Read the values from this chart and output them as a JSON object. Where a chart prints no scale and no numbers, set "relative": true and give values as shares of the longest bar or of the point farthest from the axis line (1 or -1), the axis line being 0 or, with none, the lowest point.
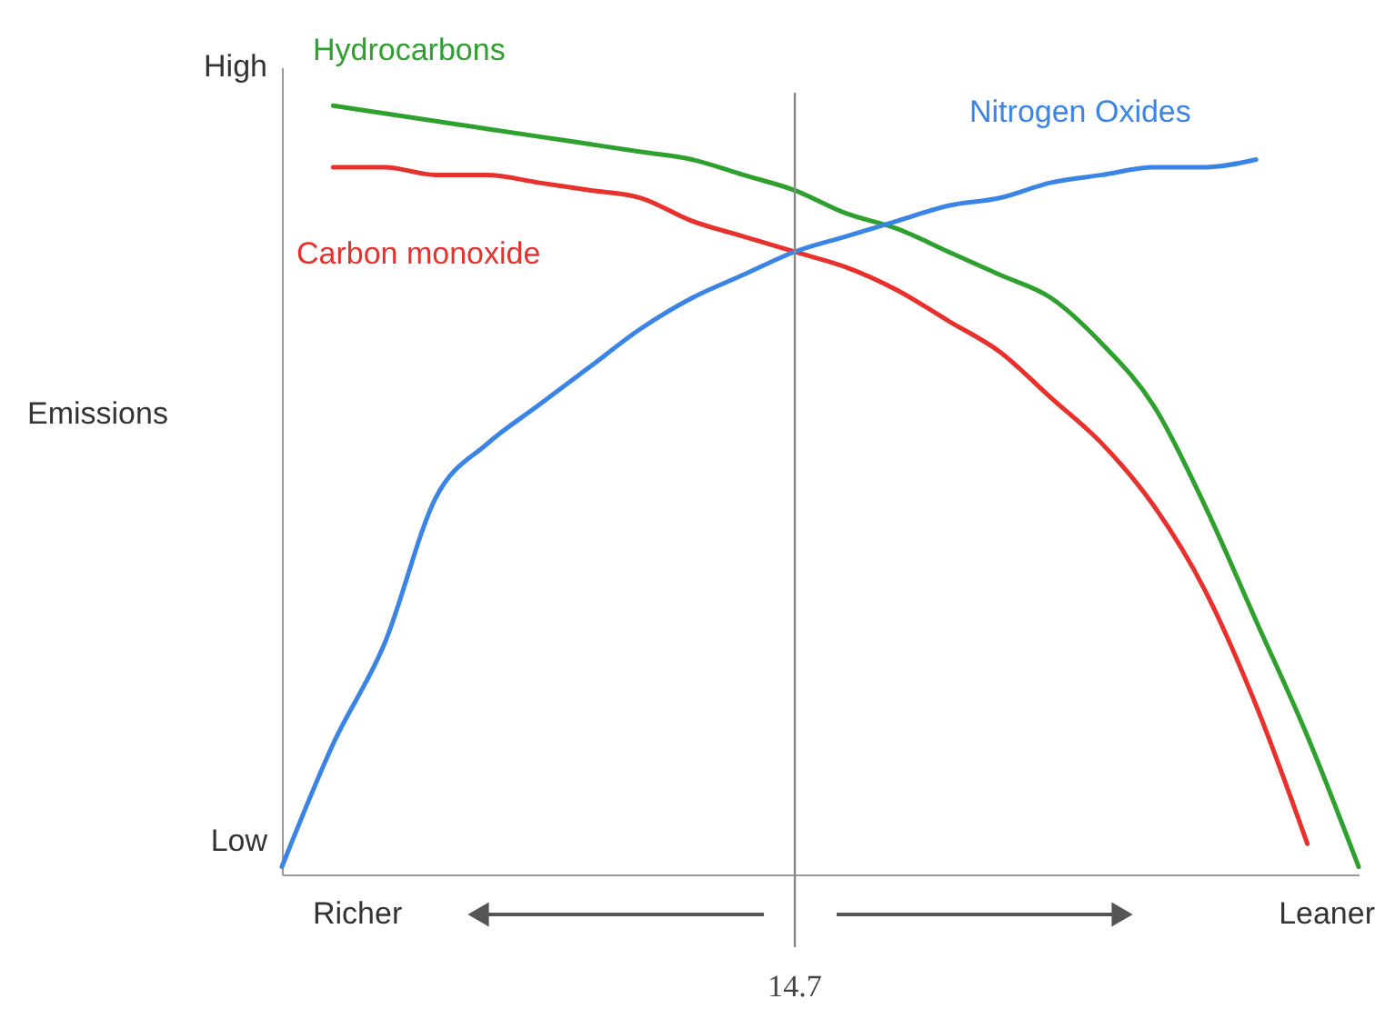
{
  "chart_data": {
    "type": "line",
    "relative": true,
    "ylabel": "Emissions",
    "categories": [
      null,
      null,
      null,
      null,
      null,
      null,
      null,
      null,
      null,
      null,
      null,
      null,
      null,
      null,
      null,
      null,
      null,
      null,
      null,
      null,
      null,
      null
    ],
    "series": [
      {
        "name": "Hydrocarbons",
        "color": "#2ea02e",
        "values": [
          null,
          1.0,
          0.99,
          0.98,
          0.97,
          0.96,
          0.95,
          0.94,
          0.93,
          0.91,
          0.89,
          0.86,
          0.84,
          0.81,
          0.78,
          0.75,
          0.69,
          0.61,
          0.48,
          0.33,
          0.18,
          0.01
        ]
      },
      {
        "name": "Carbon monoxide",
        "color": "#e8302c",
        "values": [
          null,
          0.92,
          0.92,
          0.91,
          0.91,
          0.9,
          0.89,
          0.88,
          0.85,
          0.83,
          0.81,
          0.79,
          0.76,
          0.72,
          0.68,
          0.62,
          0.56,
          0.48,
          0.37,
          0.22,
          0.04,
          null
        ]
      },
      {
        "name": "Nitrogen Oxides",
        "color": "#3a84e6",
        "values": [
          0.01,
          0.17,
          0.3,
          0.49,
          0.56,
          0.61,
          0.66,
          0.71,
          0.75,
          0.78,
          0.81,
          0.83,
          0.85,
          0.87,
          0.88,
          0.9,
          0.91,
          0.92,
          0.92,
          0.93,
          null,
          null
        ]
      }
    ],
    "annotations": [
      "High",
      "Low",
      "Richer",
      "Leaner",
      "14.7"
    ]
  }
}
